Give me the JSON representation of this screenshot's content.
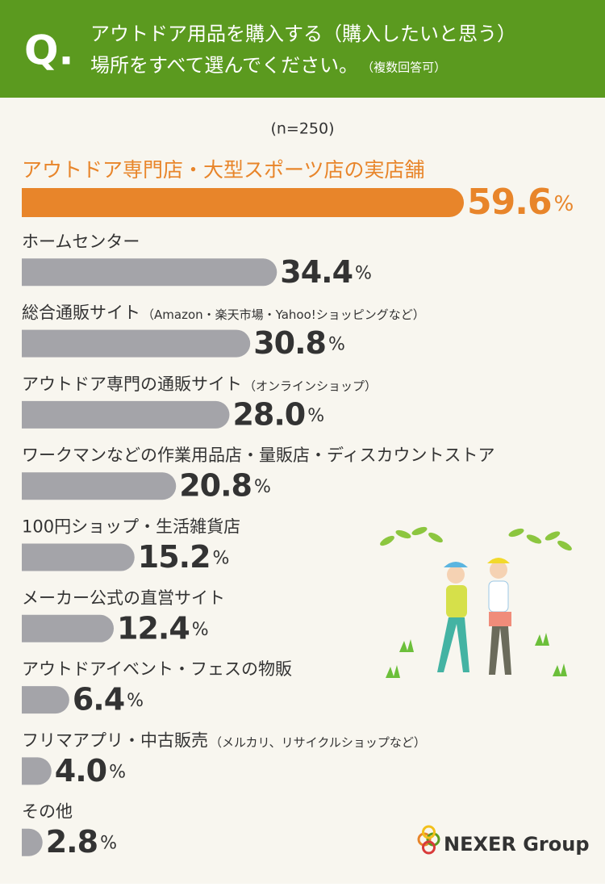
{
  "chart_data": {
    "type": "bar",
    "orientation": "horizontal",
    "title_mark": "Q.",
    "title_lines": [
      "アウトドア用品を購入する（購入したいと思う）",
      "場所をすべて選んでください。"
    ],
    "title_note": "（複数回答可）",
    "subtitle": "(n=250)",
    "categories": [
      "アウトドア専門店・大型スポーツ店の実店舗",
      "ホームセンター",
      "総合通販サイト",
      "アウトドア専門の通販サイト",
      "ワークマンなどの作業用品店・量販店・ディスカウントストア",
      "100円ショップ・生活雑貨店",
      "メーカー公式の直営サイト",
      "アウトドアイベント・フェスの物販",
      "フリマアプリ・中古販売",
      "その他"
    ],
    "category_notes": [
      null,
      null,
      "（Amazon・楽天市場・Yahoo!ショッピングなど）",
      "（オンラインショップ）",
      null,
      null,
      null,
      null,
      "（メルカリ、リサイクルショップなど）",
      null
    ],
    "values": [
      59.6,
      34.4,
      30.8,
      28.0,
      20.8,
      15.2,
      12.4,
      6.4,
      4.0,
      2.8
    ],
    "value_labels": [
      "59.6%",
      "34.4%",
      "30.8%",
      "28.0%",
      "20.8%",
      "15.2%",
      "12.4%",
      "6.4%",
      "4.0%",
      "2.8%"
    ],
    "highlight_color": "#e8852a",
    "color": "#a4a4a9",
    "header_color": "#5b9a1f",
    "brand": "NEXER Group"
  }
}
